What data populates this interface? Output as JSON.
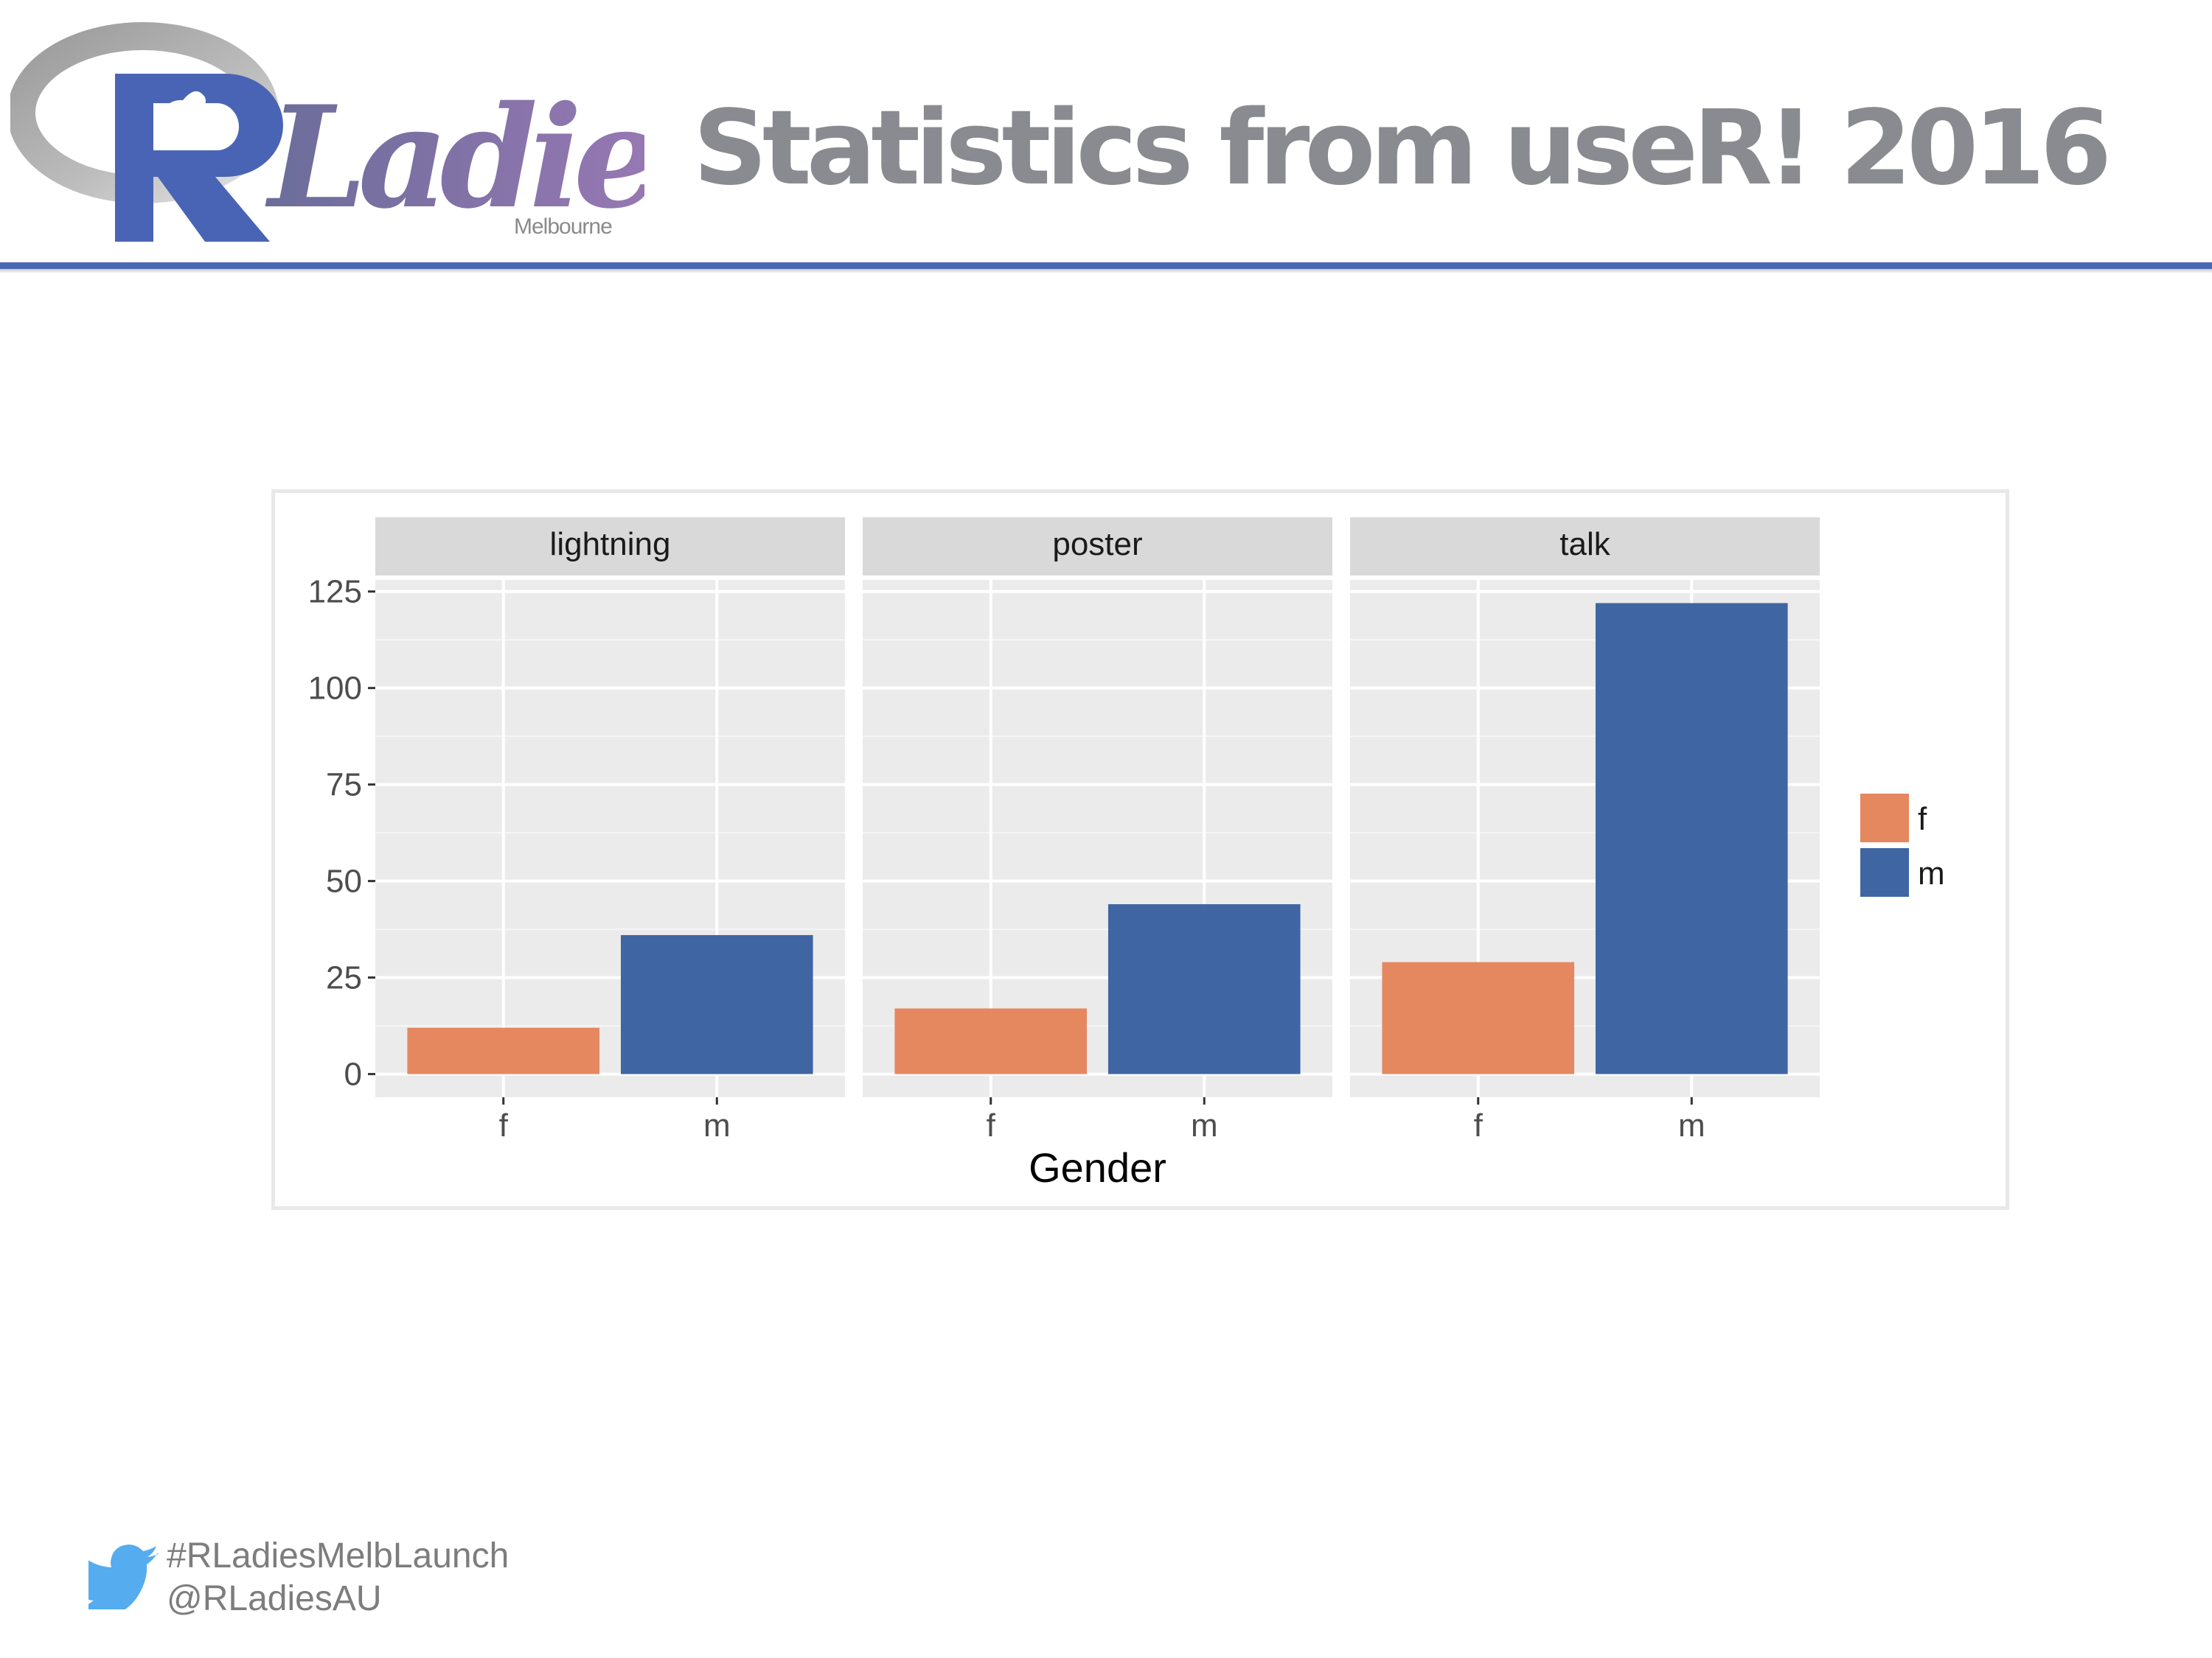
{
  "slide": {
    "title": "Statistics from useR! 2016",
    "logo": {
      "text": "RLadies",
      "city": "Melbourne"
    },
    "footer": {
      "hashtag": "#RLadiesMelbLaunch",
      "handle": "@RLadiesAU"
    }
  },
  "colors": {
    "accent": "#4a67b1",
    "title": "#8a8b90",
    "panel": "#ebebeb",
    "strip": "#d9d9d9",
    "f": "#e5885f",
    "m": "#3f66a2",
    "twitter": "#55acee"
  },
  "chart_data": {
    "type": "bar",
    "facets": [
      "lightning",
      "poster",
      "talk"
    ],
    "categories": [
      "f",
      "m"
    ],
    "values": {
      "lightning": [
        12,
        36
      ],
      "poster": [
        17,
        44
      ],
      "talk": [
        29,
        122
      ]
    },
    "xlabel": "Gender",
    "ylabel": "",
    "yticks": [
      0,
      25,
      50,
      75,
      100,
      125
    ],
    "ylim": [
      -6,
      128
    ],
    "legend": {
      "entries": [
        "f",
        "m"
      ],
      "position": "right"
    },
    "grid": true
  }
}
